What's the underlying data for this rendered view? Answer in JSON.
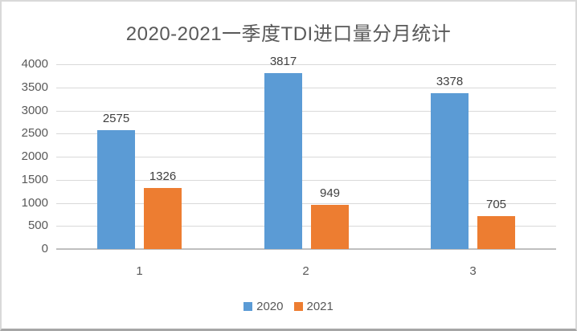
{
  "chart_data": {
    "type": "bar",
    "title": "2020-2021一季度TDI进口量分月统计",
    "categories": [
      "1",
      "2",
      "3"
    ],
    "series": [
      {
        "name": "2020",
        "color": "#5B9BD5",
        "values": [
          2575,
          3817,
          3378
        ]
      },
      {
        "name": "2021",
        "color": "#ED7D31",
        "values": [
          1326,
          949,
          705
        ]
      }
    ],
    "data_labels": {
      "2020": [
        "2575",
        "3817",
        "3378"
      ],
      "2021": [
        "1326",
        "949",
        "705"
      ]
    },
    "ylim": [
      0,
      4000
    ],
    "ytick_step": 500,
    "ytick_labels": [
      "0",
      "500",
      "1000",
      "1500",
      "2000",
      "2500",
      "3000",
      "3500",
      "4000"
    ],
    "grid": true,
    "legend_position": "bottom"
  },
  "colors": {
    "title_text": "#595959",
    "axis_text": "#595959",
    "data_label_text": "#404040",
    "legend_text": "#595959",
    "gridline": "#d9d9d9",
    "axis_line": "#bfbfbf",
    "background": "#ffffff",
    "frame_border": "#d9d9d9"
  }
}
